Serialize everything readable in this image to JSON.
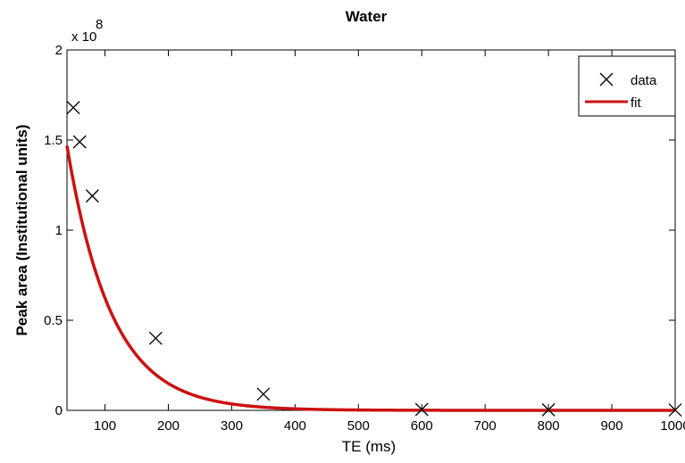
{
  "chart_data": {
    "type": "scatter",
    "title": "Water",
    "xlabel": "TE (ms)",
    "ylabel": "Peak area  (Institutional units)",
    "xlim": [
      40,
      1000
    ],
    "ylim": [
      0,
      2
    ],
    "x_ticks": [
      100,
      200,
      300,
      400,
      500,
      600,
      700,
      800,
      900,
      1000
    ],
    "y_ticks": [
      0,
      0.5,
      1,
      1.5,
      2
    ],
    "x_tick_labels": [
      "100",
      "200",
      "300",
      "400",
      "500",
      "600",
      "700",
      "800",
      "900",
      "1000"
    ],
    "y_tick_labels": [
      "0",
      "0.5",
      "1",
      "1.5",
      "2"
    ],
    "y_multiplier": "x 10",
    "y_multiplier_exponent": "8",
    "grid": false,
    "legend_position": "top-right",
    "series": [
      {
        "name": "data",
        "marker": "x",
        "color": "#000000",
        "x": [
          50,
          60,
          80,
          180,
          350,
          600,
          800,
          1000
        ],
        "y": [
          1.68,
          1.49,
          1.19,
          0.4,
          0.09,
          0.005,
          0.003,
          0.002
        ]
      },
      {
        "name": "fit",
        "style": "line",
        "color": "#cc1111",
        "model": "exponential decay",
        "amplitude": 2.6,
        "decay_ms": 70
      }
    ]
  }
}
